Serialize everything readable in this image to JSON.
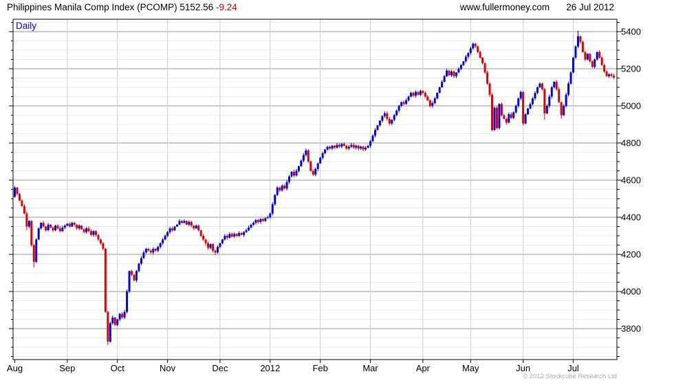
{
  "header": {
    "title": "Philippines Manila Comp Index (PCOMP)",
    "last_price": "5152.56",
    "change": "-9.24",
    "website": "www.fullermoney.com",
    "date": "26 Jul 2012"
  },
  "chart": {
    "timeframe_label": "Daily",
    "copyright": "© 2012 Stockcube Research Ltd"
  },
  "chart_data": {
    "type": "candlestick",
    "title": "Philippines Manila Comp Index (PCOMP)",
    "timeframe": "Daily",
    "last_close": 5152.56,
    "change": -9.24,
    "x_labels": [
      "Aug",
      "Sep",
      "Oct",
      "Nov",
      "Dec",
      "2012",
      "Feb",
      "Mar",
      "Apr",
      "May",
      "Jun",
      "Jul"
    ],
    "month_start_days": [
      0,
      22,
      43,
      64,
      86,
      107,
      128,
      149,
      171,
      191,
      213,
      234
    ],
    "y_ticks": [
      3800,
      4000,
      4200,
      4400,
      4600,
      4800,
      5000,
      5200,
      5400
    ],
    "y_minor_step": 50,
    "y_axis_side": "right",
    "grid": true,
    "ylim_visible": [
      3633,
      5467
    ],
    "first_open": 4510,
    "closes": [
      4560,
      4525,
      4490,
      4460,
      4420,
      4350,
      4380,
      4250,
      4160,
      4280,
      4340,
      4370,
      4350,
      4330,
      4360,
      4345,
      4330,
      4355,
      4340,
      4325,
      4345,
      4355,
      4365,
      4350,
      4370,
      4360,
      4340,
      4355,
      4335,
      4320,
      4340,
      4325,
      4305,
      4325,
      4305,
      4280,
      4260,
      4230,
      3890,
      3730,
      3830,
      3860,
      3820,
      3850,
      3880,
      3860,
      3890,
      4000,
      4110,
      4090,
      4060,
      4110,
      4150,
      4180,
      4210,
      4230,
      4220,
      4210,
      4230,
      4220,
      4240,
      4260,
      4280,
      4300,
      4320,
      4340,
      4330,
      4350,
      4360,
      4380,
      4370,
      4380,
      4360,
      4375,
      4355,
      4340,
      4355,
      4330,
      4300,
      4280,
      4260,
      4235,
      4255,
      4220,
      4210,
      4240,
      4260,
      4280,
      4300,
      4290,
      4310,
      4295,
      4310,
      4300,
      4315,
      4305,
      4320,
      4330,
      4345,
      4360,
      4370,
      4385,
      4375,
      4390,
      4380,
      4395,
      4400,
      4420,
      4470,
      4520,
      4560,
      4545,
      4570,
      4555,
      4590,
      4620,
      4645,
      4625,
      4650,
      4675,
      4705,
      4735,
      4760,
      4700,
      4650,
      4630,
      4660,
      4690,
      4720,
      4745,
      4765,
      4780,
      4770,
      4785,
      4775,
      4790,
      4780,
      4795,
      4785,
      4770,
      4780,
      4790,
      4775,
      4785,
      4770,
      4780,
      4765,
      4775,
      4785,
      4810,
      4840,
      4870,
      4895,
      4920,
      4945,
      4960,
      4930,
      4905,
      4925,
      4950,
      4975,
      5000,
      5020,
      5010,
      5030,
      5050,
      5070,
      5055,
      5075,
      5060,
      5080,
      5070,
      5050,
      5030,
      5000,
      5015,
      5040,
      5070,
      5100,
      5130,
      5160,
      5190,
      5165,
      5185,
      5160,
      5180,
      5200,
      5220,
      5240,
      5265,
      5285,
      5310,
      5335,
      5320,
      5290,
      5260,
      5230,
      5180,
      5120,
      5060,
      4870,
      4990,
      4880,
      5010,
      4950,
      4930,
      4910,
      4955,
      4935,
      4965,
      5000,
      5040,
      5075,
      4905,
      4955,
      4985,
      5010,
      5040,
      5070,
      5100,
      5120,
      5090,
      4960,
      5000,
      5050,
      5100,
      5130,
      5090,
      5020,
      4950,
      5000,
      5060,
      5120,
      5180,
      5260,
      5320,
      5375,
      5345,
      5290,
      5250,
      5280,
      5240,
      5210,
      5250,
      5290,
      5260,
      5220,
      5185,
      5160,
      5170,
      5162,
      5152.56
    ],
    "wick_overrides": [
      {
        "day": 5,
        "low": 4330
      },
      {
        "day": 8,
        "low": 4130
      },
      {
        "day": 39,
        "low": 3712
      },
      {
        "day": 84,
        "low": 4196
      },
      {
        "day": 192,
        "high": 5342
      },
      {
        "day": 200,
        "low": 4865
      },
      {
        "day": 222,
        "low": 4925
      },
      {
        "day": 229,
        "low": 4930
      },
      {
        "day": 236,
        "high": 5405
      }
    ],
    "up_color": "#0000e0",
    "down_color": "#e00000"
  }
}
